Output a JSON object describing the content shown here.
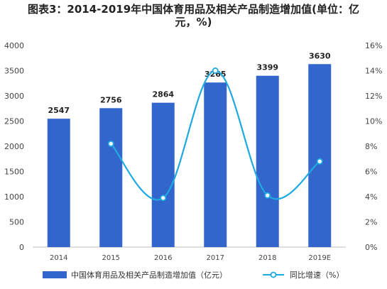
{
  "title": {
    "line1": "图表3：2014-2019年中国体育用品及相关产品制造增加值(单位：亿",
    "line2": "元，%)"
  },
  "colors": {
    "bar": "#3366cc",
    "line": "#1fa9e1",
    "marker_fill": "#ffffff"
  },
  "chart_data": {
    "type": "bar",
    "title": "图表3：2014-2019年中国体育用品及相关产品制造增加值(单位：亿元，%)",
    "categories": [
      "2014",
      "2015",
      "2016",
      "2017",
      "2018",
      "2019E"
    ],
    "series": [
      {
        "name": "中国体育用品及相关产品制造增加值（亿元）",
        "type": "bar",
        "axis": "left",
        "values": [
          2547,
          2756,
          2864,
          3265,
          3399,
          3630
        ]
      },
      {
        "name": "同比增速（%）",
        "type": "line",
        "smooth": true,
        "axis": "right",
        "values": [
          null,
          8.2,
          3.9,
          14.0,
          4.1,
          6.8
        ]
      }
    ],
    "ylim_left": [
      0,
      4000
    ],
    "yticks_left": [
      "0",
      "500",
      "1000",
      "1500",
      "2000",
      "2500",
      "3000",
      "3500",
      "4000"
    ],
    "ylim_right": [
      0,
      16
    ],
    "yticks_right": [
      "0%",
      "2%",
      "4%",
      "6%",
      "8%",
      "10%",
      "12%",
      "14%",
      "16%"
    ],
    "bar_labels": [
      "2547",
      "2756",
      "2864",
      "3265",
      "3399",
      "3630"
    ],
    "grid": false,
    "legend_position": "bottom"
  }
}
